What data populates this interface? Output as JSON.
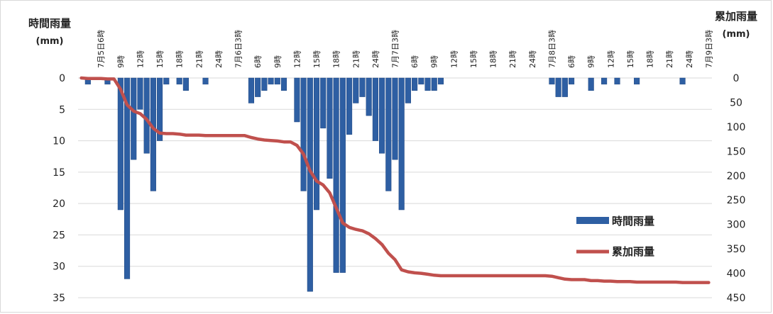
{
  "chart_data": {
    "type": "bar+line",
    "left_axis": {
      "title": "時間雨量",
      "unit": "(mm)",
      "ticks": [
        0,
        5,
        10,
        15,
        20,
        25,
        30,
        35
      ],
      "range": [
        0,
        35
      ],
      "inverted": true
    },
    "right_axis": {
      "title": "累加雨量",
      "unit": "(mm)",
      "ticks": [
        0,
        50,
        100,
        150,
        200,
        250,
        300,
        350,
        400,
        450
      ],
      "range": [
        0,
        450
      ],
      "inverted": true
    },
    "x_tick_labels": [
      "7月5日6時",
      "9時",
      "12時",
      "15時",
      "18時",
      "21時",
      "24時",
      "7月6日3時",
      "6時",
      "9時",
      "12時",
      "15時",
      "18時",
      "21時",
      "24時",
      "7月7日3時",
      "6時",
      "9時",
      "12時",
      "15時",
      "18時",
      "21時",
      "24時",
      "7月8日3時",
      "6時",
      "9時",
      "12時",
      "15時",
      "18時",
      "21時",
      "24時",
      "7月9日3時"
    ],
    "x_label_hours": [
      4,
      7,
      10,
      13,
      16,
      19,
      22,
      25,
      28,
      31,
      34,
      37,
      40,
      43,
      46,
      49,
      52,
      55,
      58,
      61,
      64,
      67,
      70,
      73,
      76,
      79,
      82,
      85,
      88,
      91,
      94,
      97
    ],
    "hour_count": 97,
    "grid": "horizontal",
    "legend_position": "right-bottom",
    "series": [
      {
        "name": "時間雨量",
        "kind": "bar",
        "axis": "left",
        "color": "#2e5fa3",
        "values": [
          0,
          1,
          0,
          0,
          1,
          0,
          21,
          32,
          13,
          5,
          12,
          18,
          10,
          1,
          0,
          1,
          2,
          0,
          0,
          1,
          0,
          0,
          0,
          0,
          0,
          0,
          4,
          3,
          2,
          1,
          1,
          2,
          0,
          7,
          18,
          34,
          21,
          8,
          16,
          31,
          31,
          9,
          4,
          3,
          6,
          10,
          12,
          18,
          13,
          21,
          4,
          2,
          1,
          2,
          2,
          1,
          0,
          0,
          0,
          0,
          0,
          0,
          0,
          0,
          0,
          0,
          0,
          0,
          0,
          0,
          0,
          0,
          1,
          3,
          3,
          1,
          0,
          0,
          2,
          0,
          1,
          0,
          1,
          0,
          0,
          1,
          0,
          0,
          0,
          0,
          0,
          0,
          1,
          0,
          0,
          0,
          0
        ]
      },
      {
        "name": "累加雨量",
        "kind": "line",
        "axis": "right",
        "color": "#c0504d",
        "values": [
          0,
          1,
          1,
          1,
          2,
          2,
          23,
          55,
          68,
          73,
          85,
          103,
          113,
          114,
          114,
          115,
          117,
          117,
          117,
          118,
          118,
          118,
          118,
          118,
          118,
          118,
          122,
          125,
          127,
          128,
          129,
          131,
          131,
          138,
          156,
          190,
          211,
          219,
          235,
          266,
          297,
          306,
          310,
          313,
          319,
          329,
          341,
          359,
          372,
          393,
          397,
          399,
          400,
          402,
          404,
          405,
          405,
          405,
          405,
          405,
          405,
          405,
          405,
          405,
          405,
          405,
          405,
          405,
          405,
          405,
          405,
          405,
          406,
          409,
          412,
          413,
          413,
          413,
          415,
          415,
          416,
          416,
          417,
          417,
          417,
          418,
          418,
          418,
          418,
          418,
          418,
          418,
          419,
          419,
          419,
          419,
          419
        ]
      }
    ]
  }
}
